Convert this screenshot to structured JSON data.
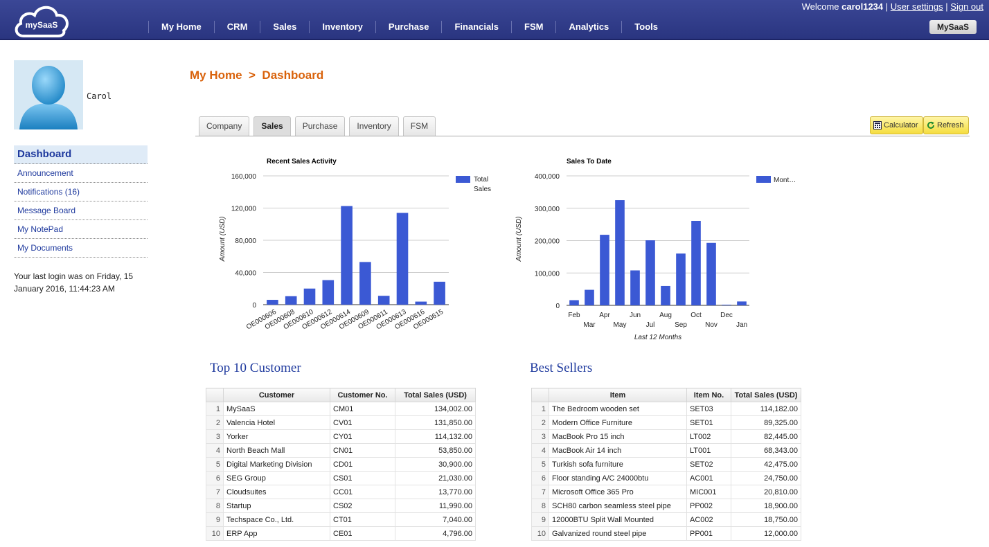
{
  "header": {
    "logo_text": "mySaaS",
    "nav": [
      "My Home",
      "CRM",
      "Sales",
      "Inventory",
      "Purchase",
      "Financials",
      "FSM",
      "Analytics",
      "Tools"
    ],
    "welcome_prefix": "Welcome",
    "username": "carol1234",
    "separator": "|",
    "user_settings": "User settings",
    "sign_out": "Sign out",
    "app_button": "MySaaS"
  },
  "sidebar": {
    "name": "Carol",
    "menu": [
      "Dashboard",
      "Announcement",
      "Notifications (16)",
      "Message Board",
      "My NotePad",
      "My Documents"
    ],
    "last_login": "Your last login was on Friday, 15 January 2016, 11:44:23 AM"
  },
  "breadcrumb": {
    "home": "My Home",
    "sep": ">",
    "current": "Dashboard"
  },
  "tabs": [
    "Company",
    "Sales",
    "Purchase",
    "Inventory",
    "FSM"
  ],
  "active_tab": "Sales",
  "toolbar": {
    "calculator": "Calculator",
    "refresh": "Refresh"
  },
  "colors": {
    "bar": "#3b59d4",
    "accent": "#d9620b",
    "link": "#1f3a9e"
  },
  "chart_data": [
    {
      "type": "bar",
      "title": "Recent Sales Activity",
      "ylabel": "Amount (USD)",
      "xlabel": "",
      "ylim": [
        0,
        160000
      ],
      "yticks": [
        "0",
        "40,000",
        "80,000",
        "120,000",
        "160,000"
      ],
      "categories": [
        "OE000606",
        "OE000608",
        "OE000610",
        "OE000612",
        "OE000614",
        "OE000609",
        "OE000611",
        "OE000613",
        "OE000616",
        "OE000615"
      ],
      "series": [
        {
          "name": "Total Sales",
          "values": [
            6000,
            10500,
            20000,
            30500,
            122500,
            53000,
            11000,
            114000,
            3800,
            28500
          ]
        }
      ],
      "legend": "right"
    },
    {
      "type": "bar",
      "title": "Sales To Date",
      "ylabel": "Amount (USD)",
      "xlabel": "Last 12 Months",
      "ylim": [
        0,
        400000
      ],
      "yticks": [
        "0",
        "100,000",
        "200,000",
        "300,000",
        "400,000"
      ],
      "categories": [
        "Feb",
        "Mar",
        "Apr",
        "May",
        "Jun",
        "Jul",
        "Aug",
        "Sep",
        "Oct",
        "Nov",
        "Dec",
        "Jan"
      ],
      "series": [
        {
          "name": "Mont…",
          "values": [
            16000,
            48000,
            218000,
            325000,
            108000,
            201000,
            60000,
            160000,
            261000,
            193000,
            2000,
            12000
          ]
        }
      ],
      "legend": "right"
    }
  ],
  "top_customers": {
    "title": "Top 10 Customer",
    "columns": [
      "Customer",
      "Customer No.",
      "Total Sales (USD)"
    ],
    "rows": [
      [
        "MySaaS",
        "CM01",
        "134,002.00"
      ],
      [
        "Valencia Hotel",
        "CV01",
        "131,850.00"
      ],
      [
        "Yorker",
        "CY01",
        "114,132.00"
      ],
      [
        "North Beach Mall",
        "CN01",
        "53,850.00"
      ],
      [
        "Digital Marketing Division",
        "CD01",
        "30,900.00"
      ],
      [
        "SEG Group",
        "CS01",
        "21,030.00"
      ],
      [
        "Cloudsuites",
        "CC01",
        "13,770.00"
      ],
      [
        "Startup",
        "CS02",
        "11,990.00"
      ],
      [
        "Techspace Co., Ltd.",
        "CT01",
        "7,040.00"
      ],
      [
        "ERP App",
        "CE01",
        "4,796.00"
      ]
    ]
  },
  "best_sellers": {
    "title": "Best Sellers",
    "columns": [
      "Item",
      "Item No.",
      "Total Sales (USD)"
    ],
    "rows": [
      [
        "The Bedroom wooden set",
        "SET03",
        "114,182.00"
      ],
      [
        "Modern Office Furniture",
        "SET01",
        "89,325.00"
      ],
      [
        "MacBook Pro 15 inch",
        "LT002",
        "82,445.00"
      ],
      [
        "MacBook Air 14 inch",
        "LT001",
        "68,343.00"
      ],
      [
        "Turkish sofa furniture",
        "SET02",
        "42,475.00"
      ],
      [
        "Floor standing A/C 24000btu",
        "AC001",
        "24,750.00"
      ],
      [
        "Microsoft Office 365 Pro",
        "MIC001",
        "20,810.00"
      ],
      [
        "SCH80 carbon seamless steel pipe",
        "PP002",
        "18,900.00"
      ],
      [
        "12000BTU Split Wall Mounted",
        "AC002",
        "18,750.00"
      ],
      [
        "Galvanized round steel pipe",
        "PP001",
        "12,000.00"
      ]
    ]
  }
}
